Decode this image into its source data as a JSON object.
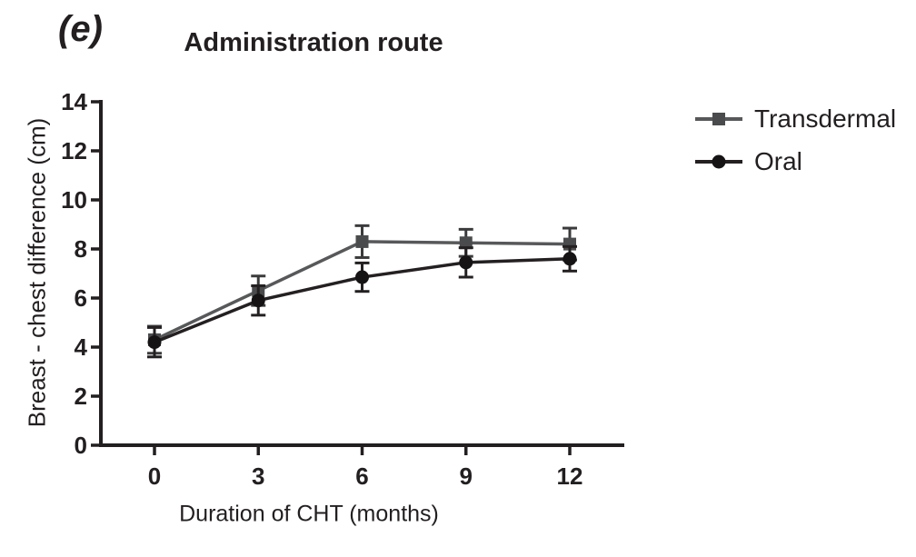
{
  "figure": {
    "panel_label": "(e)",
    "title": "Administration route"
  },
  "chart_data": {
    "type": "line",
    "title": "Administration route",
    "xlabel": "Duration of CHT (months)",
    "ylabel": "Breast - chest difference (cm)",
    "x": [
      0,
      3,
      6,
      9,
      12
    ],
    "x_tick_labels": [
      "0",
      "3",
      "6",
      "9",
      "12"
    ],
    "yticks": [
      0,
      2,
      4,
      6,
      8,
      10,
      12,
      14
    ],
    "ylim": [
      0,
      14
    ],
    "grid": false,
    "error_bars": true,
    "legend_position": "right-outside",
    "axis_color": "#231f20",
    "series": [
      {
        "name": "Transdermal",
        "marker": "square",
        "color": "#57585a",
        "marker_color": "#4a4b4d",
        "error_color": "#3b3b3d",
        "values": [
          4.3,
          6.3,
          8.3,
          8.25,
          8.2
        ],
        "errors": [
          0.55,
          0.6,
          0.65,
          0.55,
          0.65
        ]
      },
      {
        "name": "Oral",
        "marker": "circle",
        "color": "#242021",
        "marker_color": "#161314",
        "error_color": "#242021",
        "values": [
          4.2,
          5.9,
          6.85,
          7.45,
          7.6
        ],
        "errors": [
          0.6,
          0.6,
          0.58,
          0.6,
          0.5
        ]
      }
    ]
  }
}
